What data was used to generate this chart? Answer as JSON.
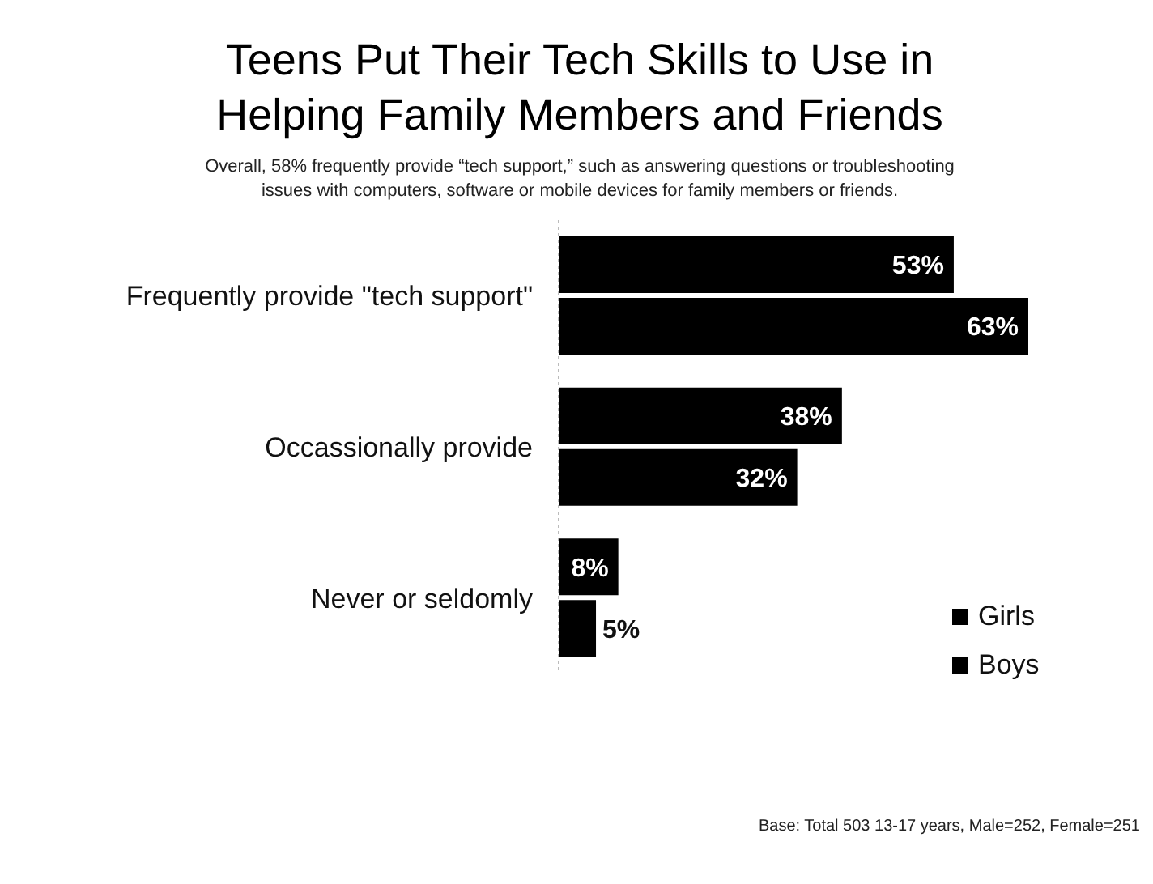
{
  "chart_data": {
    "type": "bar",
    "orientation": "horizontal",
    "title": "Teens Put Their Tech Skills to Use in Helping Family Members and Friends",
    "subtitle": "Overall, 58% frequently provide “tech support,” such as answering questions or troubleshooting issues with computers, software or mobile devices for family members or friends.",
    "categories": [
      "Frequently provide \"tech support\"",
      "Occassionally provide",
      "Never or seldomly"
    ],
    "series": [
      {
        "name": "Girls",
        "color": "#000000",
        "values": [
          53,
          38,
          8
        ],
        "value_labels": [
          "53%",
          "38%",
          "8%"
        ]
      },
      {
        "name": "Boys",
        "color": "#000000",
        "values": [
          63,
          32,
          5
        ],
        "value_labels": [
          "63%",
          "32%",
          "5%"
        ]
      }
    ],
    "legend": "right",
    "annotations": [
      "Base: Total 503 13-17 years, Male=252, Female=251"
    ]
  }
}
